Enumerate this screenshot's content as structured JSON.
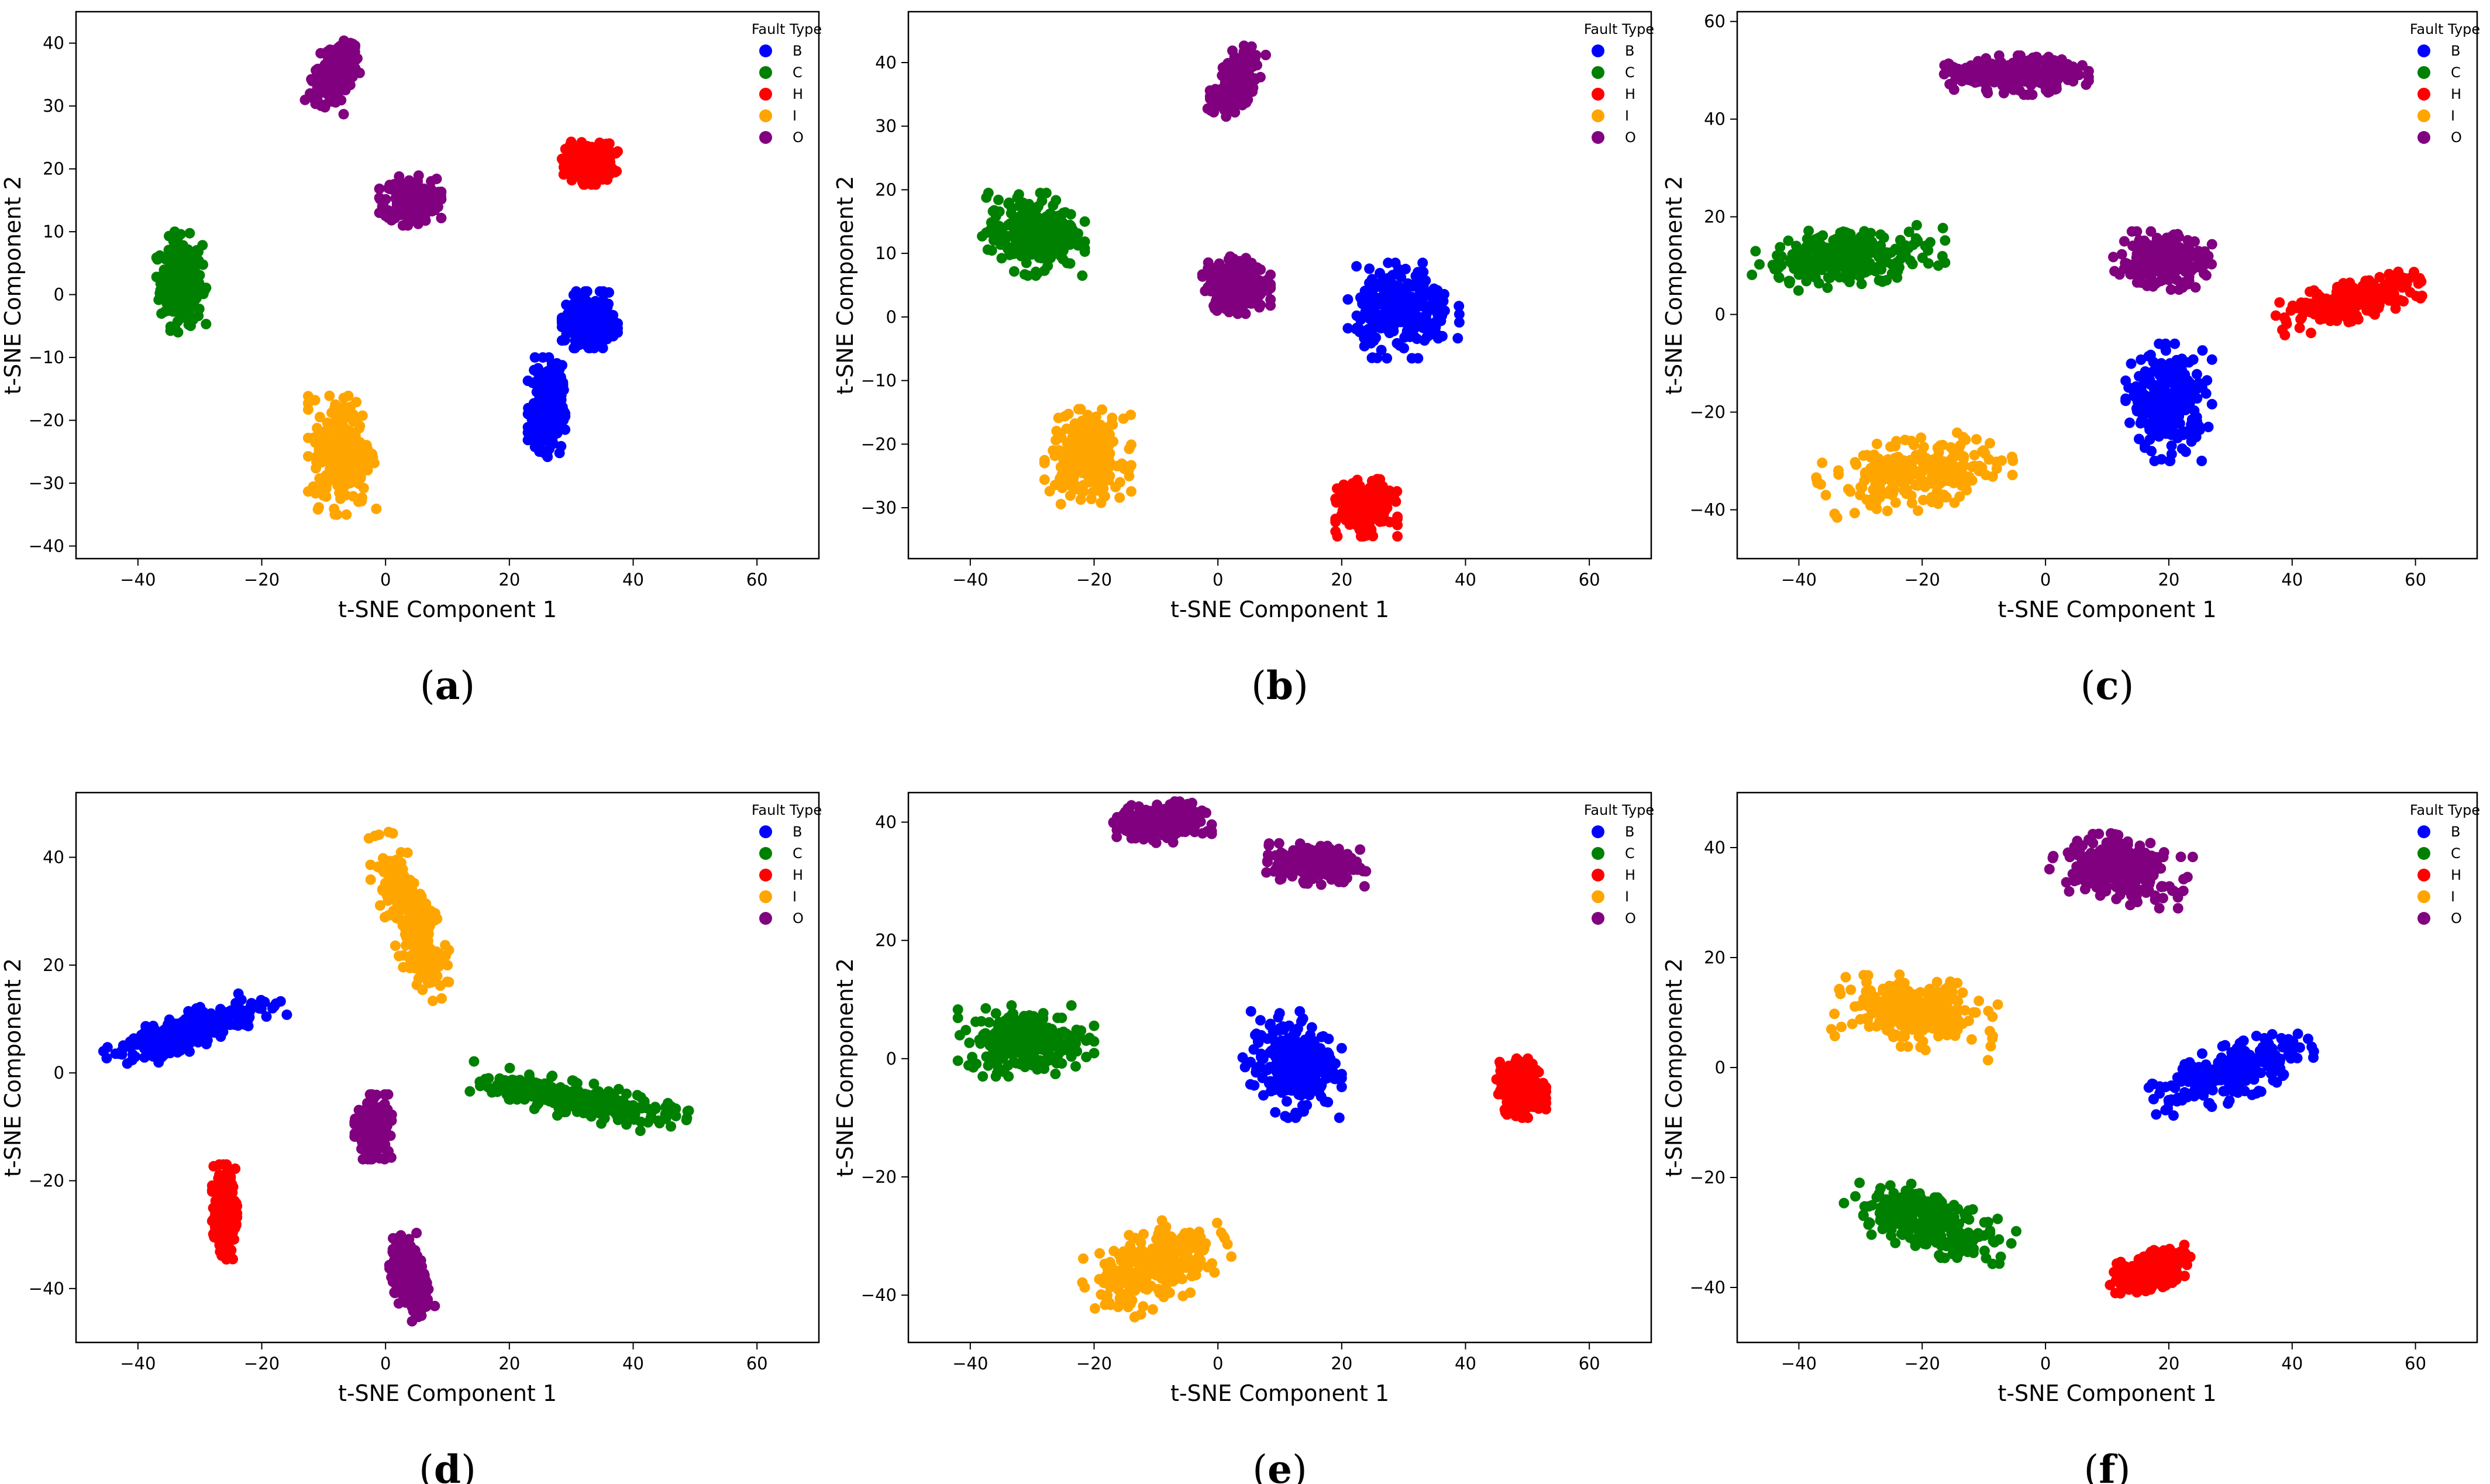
{
  "colors": {
    "B": "#0000ff",
    "C": "#008000",
    "H": "#ff0000",
    "I": "#ffa500",
    "O": "#800080"
  },
  "chart_data": [
    {
      "type": "scatter",
      "caption": "(a)",
      "xlabel": "t-SNE Component 1",
      "ylabel": "t-SNE Component 2",
      "xlim": [
        -50,
        70
      ],
      "ylim": [
        -42,
        45
      ],
      "xticks": [
        -40,
        -20,
        0,
        20,
        40,
        60
      ],
      "yticks": [
        -40,
        -30,
        -20,
        -10,
        0,
        10,
        20,
        30,
        40
      ],
      "legend": {
        "title": "Fault Type",
        "labels": [
          "B",
          "C",
          "H",
          "I",
          "O"
        ],
        "position": "top-right"
      },
      "clusters": [
        {
          "label": "C",
          "center": [
            -33,
            2
          ],
          "spread": [
            4,
            8
          ],
          "angle": 0
        },
        {
          "label": "O",
          "center": [
            -8,
            35
          ],
          "spread": [
            3.5,
            5.5
          ],
          "angle": -20
        },
        {
          "label": "O",
          "center": [
            4,
            15
          ],
          "spread": [
            5,
            4
          ],
          "angle": 0
        },
        {
          "label": "H",
          "center": [
            33,
            21
          ],
          "spread": [
            4.5,
            3.5
          ],
          "angle": 0
        },
        {
          "label": "B",
          "center": [
            33,
            -4
          ],
          "spread": [
            4.5,
            4.5
          ],
          "angle": 0
        },
        {
          "label": "B",
          "center": [
            26,
            -18
          ],
          "spread": [
            3,
            8
          ],
          "angle": 0
        },
        {
          "label": "I",
          "center": [
            -7,
            -25
          ],
          "spread": [
            5.5,
            10
          ],
          "angle": 0
        }
      ]
    },
    {
      "type": "scatter",
      "caption": "(b)",
      "xlabel": "t-SNE Component 1",
      "ylabel": "t-SNE Component 2",
      "xlim": [
        -50,
        70
      ],
      "ylim": [
        -38,
        48
      ],
      "xticks": [
        -40,
        -20,
        0,
        20,
        40,
        60
      ],
      "yticks": [
        -30,
        -20,
        -10,
        0,
        10,
        20,
        30,
        40
      ],
      "legend": {
        "title": "Fault Type",
        "labels": [
          "B",
          "C",
          "H",
          "I",
          "O"
        ],
        "position": "top-right"
      },
      "clusters": [
        {
          "label": "O",
          "center": [
            3,
            37
          ],
          "spread": [
            3,
            6
          ],
          "angle": -30
        },
        {
          "label": "C",
          "center": [
            -30,
            13
          ],
          "spread": [
            8.5,
            6.5
          ],
          "angle": 0
        },
        {
          "label": "O",
          "center": [
            3,
            5
          ],
          "spread": [
            5.5,
            4.5
          ],
          "angle": 0
        },
        {
          "label": "B",
          "center": [
            30,
            1
          ],
          "spread": [
            9,
            7.5
          ],
          "angle": 0
        },
        {
          "label": "I",
          "center": [
            -21,
            -22
          ],
          "spread": [
            7,
            7.5
          ],
          "angle": 0
        },
        {
          "label": "H",
          "center": [
            24,
            -30
          ],
          "spread": [
            5,
            4.5
          ],
          "angle": 0
        }
      ]
    },
    {
      "type": "scatter",
      "caption": "(c)",
      "xlabel": "t-SNE Component 1",
      "ylabel": "t-SNE Component 2",
      "xlim": [
        -50,
        70
      ],
      "ylim": [
        -50,
        62
      ],
      "xticks": [
        -40,
        -20,
        0,
        20,
        40,
        60
      ],
      "yticks": [
        -40,
        -20,
        0,
        20,
        40,
        60
      ],
      "legend": {
        "title": "Fault Type",
        "labels": [
          "B",
          "C",
          "H",
          "I",
          "O"
        ],
        "position": "top-right"
      },
      "clusters": [
        {
          "label": "O",
          "center": [
            -5,
            49
          ],
          "spread": [
            12,
            4
          ],
          "angle": 0
        },
        {
          "label": "C",
          "center": [
            -32,
            12
          ],
          "spread": [
            16,
            6
          ],
          "angle": 8
        },
        {
          "label": "O",
          "center": [
            19,
            11
          ],
          "spread": [
            8,
            6
          ],
          "angle": 0
        },
        {
          "label": "H",
          "center": [
            50,
            3
          ],
          "spread": [
            13,
            4
          ],
          "angle": 20
        },
        {
          "label": "B",
          "center": [
            20,
            -18
          ],
          "spread": [
            7,
            12
          ],
          "angle": 0
        },
        {
          "label": "I",
          "center": [
            -21,
            -33
          ],
          "spread": [
            16,
            7.5
          ],
          "angle": 10
        }
      ]
    },
    {
      "type": "scatter",
      "caption": "(d)",
      "xlabel": "t-SNE Component 1",
      "ylabel": "t-SNE Component 2",
      "xlim": [
        -50,
        70
      ],
      "ylim": [
        -50,
        52
      ],
      "xticks": [
        -40,
        -20,
        0,
        20,
        40,
        60
      ],
      "yticks": [
        -40,
        -20,
        0,
        20,
        40
      ],
      "legend": {
        "title": "Fault Type",
        "labels": [
          "B",
          "C",
          "H",
          "I",
          "O"
        ],
        "position": "top-right"
      },
      "clusters": [
        {
          "label": "B",
          "center": [
            -31,
            8
          ],
          "spread": [
            15,
            3.5
          ],
          "angle": 22
        },
        {
          "label": "I",
          "center": [
            4,
            29
          ],
          "spread": [
            4,
            16
          ],
          "angle": 18
        },
        {
          "label": "C",
          "center": [
            31,
            -5
          ],
          "spread": [
            18,
            3.5
          ],
          "angle": -12
        },
        {
          "label": "O",
          "center": [
            -2,
            -10
          ],
          "spread": [
            3,
            6
          ],
          "angle": 0
        },
        {
          "label": "H",
          "center": [
            -26,
            -26
          ],
          "spread": [
            2,
            9
          ],
          "angle": 0
        },
        {
          "label": "O",
          "center": [
            4,
            -38
          ],
          "spread": [
            3,
            8
          ],
          "angle": 10
        }
      ]
    },
    {
      "type": "scatter",
      "caption": "(e)",
      "xlabel": "t-SNE Component 1",
      "ylabel": "t-SNE Component 2",
      "xlim": [
        -50,
        70
      ],
      "ylim": [
        -48,
        45
      ],
      "xticks": [
        -40,
        -20,
        0,
        20,
        40,
        60
      ],
      "yticks": [
        -40,
        -20,
        0,
        20,
        40
      ],
      "legend": {
        "title": "Fault Type",
        "labels": [
          "B",
          "C",
          "H",
          "I",
          "O"
        ],
        "position": "top-right"
      },
      "clusters": [
        {
          "label": "O",
          "center": [
            -9,
            40
          ],
          "spread": [
            8,
            3.5
          ],
          "angle": 0
        },
        {
          "label": "O",
          "center": [
            16,
            33
          ],
          "spread": [
            8,
            3.5
          ],
          "angle": -5
        },
        {
          "label": "C",
          "center": [
            -31,
            3
          ],
          "spread": [
            11,
            6
          ],
          "angle": 0
        },
        {
          "label": "B",
          "center": [
            12,
            -1
          ],
          "spread": [
            8,
            9
          ],
          "angle": 0
        },
        {
          "label": "H",
          "center": [
            49,
            -5
          ],
          "spread": [
            4,
            5
          ],
          "angle": 0
        },
        {
          "label": "I",
          "center": [
            -10,
            -35
          ],
          "spread": [
            12,
            6.5
          ],
          "angle": 25
        }
      ]
    },
    {
      "type": "scatter",
      "caption": "(f)",
      "xlabel": "t-SNE Component 1",
      "ylabel": "t-SNE Component 2",
      "xlim": [
        -50,
        70
      ],
      "ylim": [
        -50,
        50
      ],
      "xticks": [
        -40,
        -20,
        0,
        20,
        40,
        60
      ],
      "yticks": [
        -40,
        -20,
        0,
        20,
        40
      ],
      "legend": {
        "title": "Fault Type",
        "labels": [
          "B",
          "C",
          "H",
          "I",
          "O"
        ],
        "position": "top-right"
      },
      "clusters": [
        {
          "label": "O",
          "center": [
            12,
            36
          ],
          "spread": [
            11,
            6
          ],
          "angle": -15
        },
        {
          "label": "I",
          "center": [
            -21,
            10
          ],
          "spread": [
            13,
            6.5
          ],
          "angle": -10
        },
        {
          "label": "B",
          "center": [
            30,
            -1
          ],
          "spread": [
            14,
            5
          ],
          "angle": 22
        },
        {
          "label": "C",
          "center": [
            -19,
            -28
          ],
          "spread": [
            14,
            5.5
          ],
          "angle": -20
        },
        {
          "label": "H",
          "center": [
            17,
            -37
          ],
          "spread": [
            7,
            3.5
          ],
          "angle": 25
        }
      ]
    }
  ]
}
